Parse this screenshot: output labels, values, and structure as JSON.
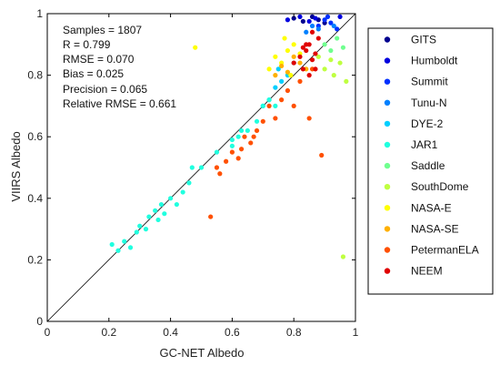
{
  "chart_data": {
    "type": "scatter",
    "xlabel": "GC-NET Albedo",
    "ylabel": "VIIRS Albedo",
    "xlim": [
      0,
      1
    ],
    "ylim": [
      0,
      1
    ],
    "x_ticks": [
      "0",
      "0.2",
      "0.4",
      "0.6",
      "0.8",
      "1"
    ],
    "y_ticks": [
      "0",
      "0.2",
      "0.4",
      "0.6",
      "0.8",
      "1"
    ],
    "grid": false,
    "reference_line": "1:1",
    "legend_placement": "outside-right",
    "stats": [
      "Samples = 1807",
      "R = 0.799",
      "RMSE = 0.070",
      "Bias = 0.025",
      "Precision = 0.065",
      "Relative RMSE = 0.661"
    ],
    "series": [
      {
        "name": "GITS",
        "color": "#00008f",
        "x": [
          0.8,
          0.83,
          0.86,
          0.88,
          0.9
        ],
        "y": [
          0.985,
          0.975,
          0.99,
          0.98,
          0.97
        ]
      },
      {
        "name": "Humboldt",
        "color": "#0000df",
        "x": [
          0.78,
          0.82,
          0.85,
          0.87,
          0.95
        ],
        "y": [
          0.98,
          0.99,
          0.975,
          0.985,
          0.99
        ]
      },
      {
        "name": "Summit",
        "color": "#0030ff",
        "x": [
          0.88,
          0.9,
          0.92,
          0.94,
          0.91
        ],
        "y": [
          0.96,
          0.98,
          0.97,
          0.95,
          0.99
        ]
      },
      {
        "name": "Tunu-N",
        "color": "#0080ff",
        "x": [
          0.84,
          0.86,
          0.88,
          0.93
        ],
        "y": [
          0.94,
          0.96,
          0.95,
          0.96
        ]
      },
      {
        "name": "DYE-2",
        "color": "#00cfff",
        "x": [
          0.7,
          0.72,
          0.74,
          0.76,
          0.78,
          0.8,
          0.75
        ],
        "y": [
          0.7,
          0.72,
          0.76,
          0.78,
          0.8,
          0.84,
          0.82
        ]
      },
      {
        "name": "JAR1",
        "color": "#20ffdf",
        "x": [
          0.21,
          0.23,
          0.25,
          0.27,
          0.29,
          0.3,
          0.32,
          0.33,
          0.35,
          0.36,
          0.37,
          0.38,
          0.4,
          0.42,
          0.44,
          0.46,
          0.47,
          0.5,
          0.55,
          0.6,
          0.62,
          0.65,
          0.68,
          0.7,
          0.72,
          0.74,
          0.6,
          0.63
        ],
        "y": [
          0.25,
          0.23,
          0.26,
          0.24,
          0.29,
          0.31,
          0.3,
          0.34,
          0.36,
          0.33,
          0.38,
          0.35,
          0.4,
          0.38,
          0.42,
          0.45,
          0.5,
          0.5,
          0.55,
          0.59,
          0.6,
          0.62,
          0.65,
          0.7,
          0.72,
          0.7,
          0.57,
          0.62
        ]
      },
      {
        "name": "Saddle",
        "color": "#70ff8f",
        "x": [
          0.9,
          0.92,
          0.94,
          0.96
        ],
        "y": [
          0.9,
          0.88,
          0.92,
          0.89
        ]
      },
      {
        "name": "SouthDome",
        "color": "#bfff40",
        "x": [
          0.88,
          0.9,
          0.93,
          0.95,
          0.97,
          0.96,
          0.92
        ],
        "y": [
          0.86,
          0.82,
          0.8,
          0.84,
          0.78,
          0.21,
          0.85
        ]
      },
      {
        "name": "NASA-E",
        "color": "#ffff00",
        "x": [
          0.48,
          0.72,
          0.74,
          0.76,
          0.78,
          0.8,
          0.82,
          0.77,
          0.79
        ],
        "y": [
          0.89,
          0.82,
          0.86,
          0.84,
          0.88,
          0.9,
          0.87,
          0.92,
          0.8
        ]
      },
      {
        "name": "NASA-SE",
        "color": "#ffb000",
        "x": [
          0.74,
          0.76,
          0.78,
          0.8,
          0.82,
          0.84
        ],
        "y": [
          0.8,
          0.83,
          0.81,
          0.86,
          0.84,
          0.82
        ]
      },
      {
        "name": "PetermanELA",
        "color": "#ff5000",
        "x": [
          0.53,
          0.55,
          0.56,
          0.58,
          0.6,
          0.62,
          0.64,
          0.66,
          0.68,
          0.7,
          0.72,
          0.74,
          0.76,
          0.78,
          0.8,
          0.82,
          0.85,
          0.89,
          0.86,
          0.63,
          0.67
        ],
        "y": [
          0.34,
          0.5,
          0.48,
          0.52,
          0.55,
          0.53,
          0.6,
          0.58,
          0.62,
          0.65,
          0.7,
          0.66,
          0.72,
          0.75,
          0.7,
          0.78,
          0.66,
          0.54,
          0.82,
          0.56,
          0.6
        ]
      },
      {
        "name": "NEEM",
        "color": "#e00000",
        "x": [
          0.8,
          0.82,
          0.84,
          0.85,
          0.86,
          0.87,
          0.88,
          0.83,
          0.85,
          0.86,
          0.84,
          0.87,
          0.83
        ],
        "y": [
          0.84,
          0.86,
          0.88,
          0.9,
          0.85,
          0.87,
          0.92,
          0.82,
          0.8,
          0.94,
          0.9,
          0.82,
          0.89
        ]
      }
    ]
  }
}
